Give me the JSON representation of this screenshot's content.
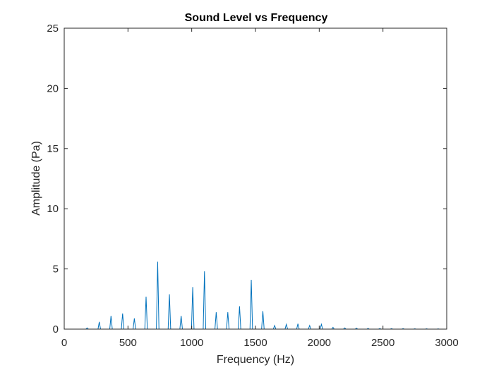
{
  "chart_data": {
    "type": "line",
    "title": "Sound Level vs Frequency",
    "xlabel": "Frequency (Hz)",
    "ylabel": "Amplitude (Pa)",
    "xlim": [
      0,
      3000
    ],
    "ylim": [
      0,
      25
    ],
    "xticks": [
      0,
      500,
      1000,
      1500,
      2000,
      2500,
      3000
    ],
    "yticks": [
      0,
      5,
      10,
      15,
      20,
      25
    ],
    "grid": false,
    "line_color": "#0072BD",
    "axis_color": "#262626",
    "peaks": [
      {
        "x": 180,
        "y": 0.1
      },
      {
        "x": 275,
        "y": 0.6
      },
      {
        "x": 367,
        "y": 1.1
      },
      {
        "x": 458,
        "y": 1.3
      },
      {
        "x": 550,
        "y": 0.9
      },
      {
        "x": 642,
        "y": 2.7
      },
      {
        "x": 733,
        "y": 5.6
      },
      {
        "x": 825,
        "y": 2.9
      },
      {
        "x": 917,
        "y": 1.1
      },
      {
        "x": 1008,
        "y": 3.5
      },
      {
        "x": 1100,
        "y": 4.8
      },
      {
        "x": 1192,
        "y": 1.4
      },
      {
        "x": 1283,
        "y": 1.4
      },
      {
        "x": 1375,
        "y": 1.9
      },
      {
        "x": 1467,
        "y": 4.1
      },
      {
        "x": 1558,
        "y": 1.5
      },
      {
        "x": 1650,
        "y": 0.3
      },
      {
        "x": 1742,
        "y": 0.4
      },
      {
        "x": 1833,
        "y": 0.45
      },
      {
        "x": 1925,
        "y": 0.3
      },
      {
        "x": 2017,
        "y": 0.4
      },
      {
        "x": 2108,
        "y": 0.15
      },
      {
        "x": 2200,
        "y": 0.1
      },
      {
        "x": 2292,
        "y": 0.08
      },
      {
        "x": 2383,
        "y": 0.06
      },
      {
        "x": 2475,
        "y": 0.05
      },
      {
        "x": 2567,
        "y": 0.04
      },
      {
        "x": 2658,
        "y": 0.04
      },
      {
        "x": 2750,
        "y": 0.03
      },
      {
        "x": 2842,
        "y": 0.03
      },
      {
        "x": 2933,
        "y": 0.02
      }
    ]
  }
}
